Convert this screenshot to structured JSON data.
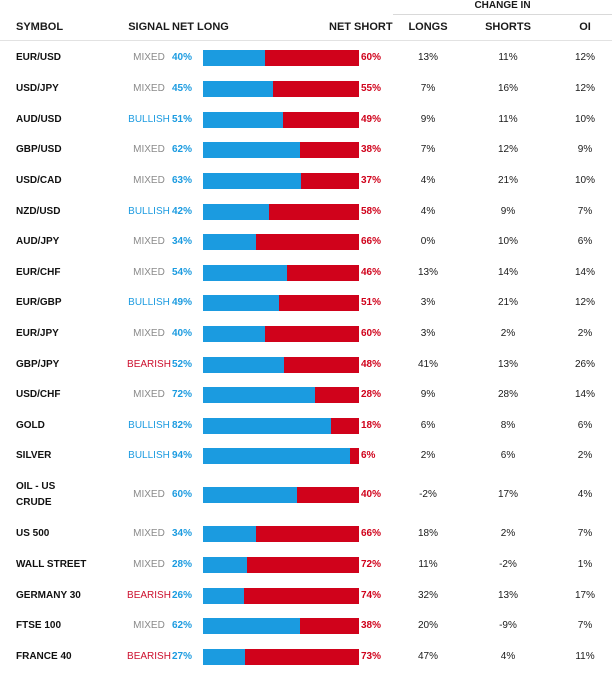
{
  "header": {
    "group_label": "CHANGE IN",
    "symbol": "SYMBOL",
    "signal": "SIGNAL",
    "net_long": "NET LONG",
    "net_short": "NET SHORT",
    "longs": "LONGS",
    "shorts": "SHORTS",
    "oi": "OI"
  },
  "colors": {
    "long": "#1b9be0",
    "short": "#d0021b",
    "mixed": "#8a8a8a"
  },
  "rows": [
    {
      "symbol": "EUR/USD",
      "signal": "MIXED",
      "net_long_pct": 40,
      "net_long": "40%",
      "net_short": "60%",
      "longs": "13%",
      "shorts": "11%",
      "oi": "12%"
    },
    {
      "symbol": "USD/JPY",
      "signal": "MIXED",
      "net_long_pct": 45,
      "net_long": "45%",
      "net_short": "55%",
      "longs": "7%",
      "shorts": "16%",
      "oi": "12%"
    },
    {
      "symbol": "AUD/USD",
      "signal": "BULLISH",
      "net_long_pct": 51,
      "net_long": "51%",
      "net_short": "49%",
      "longs": "9%",
      "shorts": "11%",
      "oi": "10%"
    },
    {
      "symbol": "GBP/USD",
      "signal": "MIXED",
      "net_long_pct": 62,
      "net_long": "62%",
      "net_short": "38%",
      "longs": "7%",
      "shorts": "12%",
      "oi": "9%"
    },
    {
      "symbol": "USD/CAD",
      "signal": "MIXED",
      "net_long_pct": 63,
      "net_long": "63%",
      "net_short": "37%",
      "longs": "4%",
      "shorts": "21%",
      "oi": "10%"
    },
    {
      "symbol": "NZD/USD",
      "signal": "BULLISH",
      "net_long_pct": 42,
      "net_long": "42%",
      "net_short": "58%",
      "longs": "4%",
      "shorts": "9%",
      "oi": "7%"
    },
    {
      "symbol": "AUD/JPY",
      "signal": "MIXED",
      "net_long_pct": 34,
      "net_long": "34%",
      "net_short": "66%",
      "longs": "0%",
      "shorts": "10%",
      "oi": "6%"
    },
    {
      "symbol": "EUR/CHF",
      "signal": "MIXED",
      "net_long_pct": 54,
      "net_long": "54%",
      "net_short": "46%",
      "longs": "13%",
      "shorts": "14%",
      "oi": "14%"
    },
    {
      "symbol": "EUR/GBP",
      "signal": "BULLISH",
      "net_long_pct": 49,
      "net_long": "49%",
      "net_short": "51%",
      "longs": "3%",
      "shorts": "21%",
      "oi": "12%"
    },
    {
      "symbol": "EUR/JPY",
      "signal": "MIXED",
      "net_long_pct": 40,
      "net_long": "40%",
      "net_short": "60%",
      "longs": "3%",
      "shorts": "2%",
      "oi": "2%"
    },
    {
      "symbol": "GBP/JPY",
      "signal": "BEARISH",
      "net_long_pct": 52,
      "net_long": "52%",
      "net_short": "48%",
      "longs": "41%",
      "shorts": "13%",
      "oi": "26%"
    },
    {
      "symbol": "USD/CHF",
      "signal": "MIXED",
      "net_long_pct": 72,
      "net_long": "72%",
      "net_short": "28%",
      "longs": "9%",
      "shorts": "28%",
      "oi": "14%"
    },
    {
      "symbol": "GOLD",
      "signal": "BULLISH",
      "net_long_pct": 82,
      "net_long": "82%",
      "net_short": "18%",
      "longs": "6%",
      "shorts": "8%",
      "oi": "6%"
    },
    {
      "symbol": "SILVER",
      "signal": "BULLISH",
      "net_long_pct": 94,
      "net_long": "94%",
      "net_short": "6%",
      "longs": "2%",
      "shorts": "6%",
      "oi": "2%"
    },
    {
      "symbol": "OIL - US CRUDE",
      "symbol_lines": [
        "OIL - US",
        "CRUDE"
      ],
      "signal": "MIXED",
      "net_long_pct": 60,
      "net_long": "60%",
      "net_short": "40%",
      "longs": "-2%",
      "shorts": "17%",
      "oi": "4%"
    },
    {
      "symbol": "US 500",
      "signal": "MIXED",
      "net_long_pct": 34,
      "net_long": "34%",
      "net_short": "66%",
      "longs": "18%",
      "shorts": "2%",
      "oi": "7%"
    },
    {
      "symbol": "WALL STREET",
      "signal": "MIXED",
      "net_long_pct": 28,
      "net_long": "28%",
      "net_short": "72%",
      "longs": "11%",
      "shorts": "-2%",
      "oi": "1%"
    },
    {
      "symbol": "GERMANY 30",
      "signal": "BEARISH",
      "net_long_pct": 26,
      "net_long": "26%",
      "net_short": "74%",
      "longs": "32%",
      "shorts": "13%",
      "oi": "17%"
    },
    {
      "symbol": "FTSE 100",
      "signal": "MIXED",
      "net_long_pct": 62,
      "net_long": "62%",
      "net_short": "38%",
      "longs": "20%",
      "shorts": "-9%",
      "oi": "7%"
    },
    {
      "symbol": "FRANCE 40",
      "signal": "BEARISH",
      "net_long_pct": 27,
      "net_long": "27%",
      "net_short": "73%",
      "longs": "47%",
      "shorts": "4%",
      "oi": "11%"
    }
  ]
}
